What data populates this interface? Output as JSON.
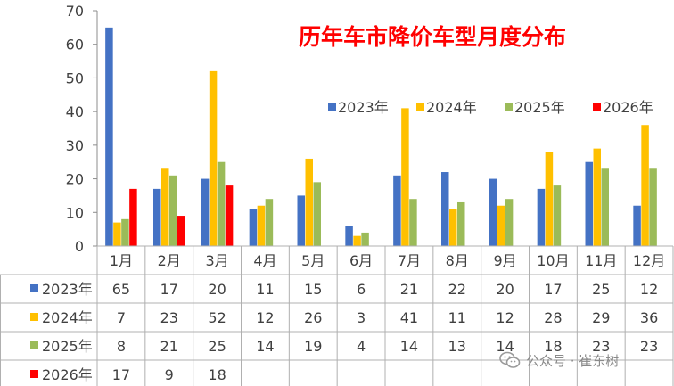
{
  "chart_data": {
    "type": "bar",
    "title": "历年车市降价车型月度分布",
    "categories": [
      "1月",
      "2月",
      "3月",
      "4月",
      "5月",
      "6月",
      "7月",
      "8月",
      "9月",
      "10月",
      "11月",
      "12月"
    ],
    "ylim": [
      0,
      70
    ],
    "yticks": [
      0,
      10,
      20,
      30,
      40,
      50,
      60,
      70
    ],
    "grid": false,
    "legend_position": "top-right",
    "series": [
      {
        "name": "2023年",
        "color": "#4472C4",
        "values": [
          65,
          17,
          20,
          11,
          15,
          6,
          21,
          22,
          20,
          17,
          25,
          12
        ]
      },
      {
        "name": "2024年",
        "color": "#FFC000",
        "values": [
          7,
          23,
          52,
          12,
          26,
          3,
          41,
          11,
          12,
          28,
          29,
          36
        ]
      },
      {
        "name": "2025年",
        "color": "#9BBB59",
        "values": [
          8,
          21,
          25,
          14,
          19,
          4,
          14,
          13,
          14,
          18,
          23,
          23
        ]
      },
      {
        "name": "2026年",
        "color": "#FF0000",
        "values": [
          17,
          9,
          18,
          null,
          null,
          null,
          null,
          null,
          null,
          null,
          null,
          null
        ]
      }
    ],
    "data_table": true
  },
  "watermark": {
    "text": "公众号 · 崔东树",
    "icon": "wechat-icon"
  }
}
